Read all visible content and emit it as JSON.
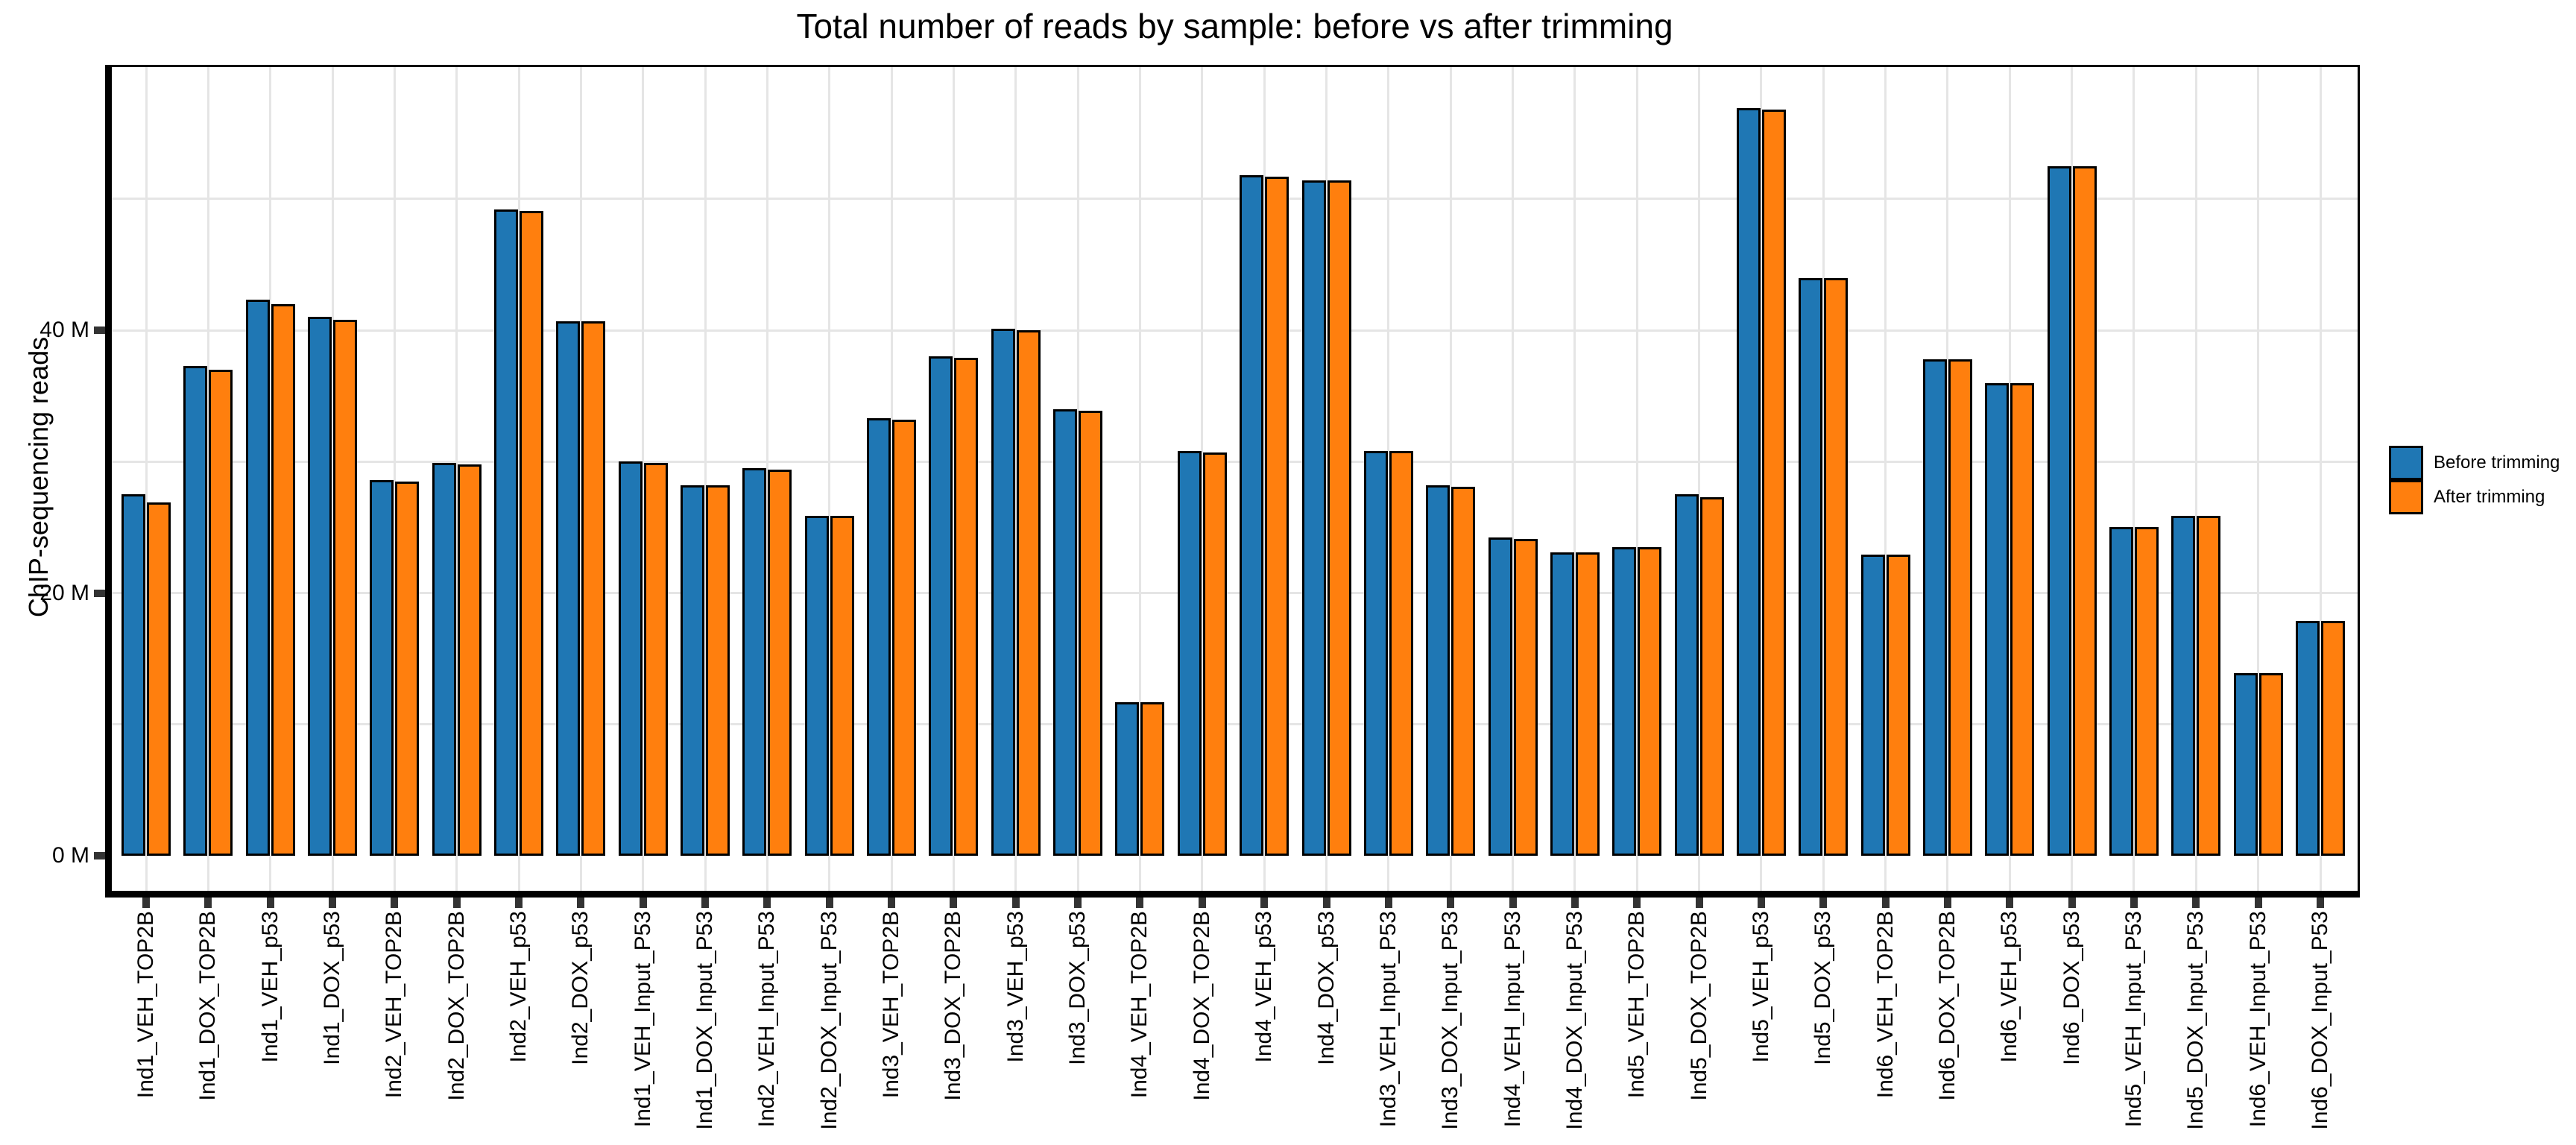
{
  "chart_data": {
    "type": "bar",
    "title": "Total number of reads by sample: before vs after trimming",
    "ylabel": "ChIP-sequencing reads",
    "xlabel": "",
    "units": "millions of reads",
    "legend_position": "right",
    "grid": true,
    "y_axis": {
      "tick_labels": [
        "0 M",
        "20 M",
        "40 M"
      ],
      "ticks_m": [
        0,
        20,
        40
      ],
      "gridlines_m": [
        10,
        20,
        30,
        40,
        50
      ],
      "ylim_m": [
        -2.85,
        59.85
      ]
    },
    "categories": [
      "Ind1_VEH_TOP2B",
      "Ind1_DOX_TOP2B",
      "Ind1_VEH_p53",
      "Ind1_DOX_p53",
      "Ind2_VEH_TOP2B",
      "Ind2_DOX_TOP2B",
      "Ind2_VEH_p53",
      "Ind2_DOX_p53",
      "Ind1_VEH_Input_P53",
      "Ind1_DOX_Input_P53",
      "Ind2_VEH_Input_P53",
      "Ind2_DOX_Input_P53",
      "Ind3_VEH_TOP2B",
      "Ind3_DOX_TOP2B",
      "Ind3_VEH_p53",
      "Ind3_DOX_p53",
      "Ind4_VEH_TOP2B",
      "Ind4_DOX_TOP2B",
      "Ind4_VEH_p53",
      "Ind4_DOX_p53",
      "Ind3_VEH_Input_P53",
      "Ind3_DOX_Input_P53",
      "Ind4_VEH_Input_P53",
      "Ind4_DOX_Input_P53",
      "Ind5_VEH_TOP2B",
      "Ind5_DOX_TOP2B",
      "Ind5_VEH_p53",
      "Ind5_DOX_p53",
      "Ind6_VEH_TOP2B",
      "Ind6_DOX_TOP2B",
      "Ind6_VEH_p53",
      "Ind6_DOX_p53",
      "Ind5_VEH_Input_P53",
      "Ind5_DOX_Input_P53",
      "Ind6_VEH_Input_P53",
      "Ind6_DOX_Input_P53"
    ],
    "series": [
      {
        "name": "Before trimming",
        "color": "#1f77b4",
        "values_m": [
          27.5,
          37.3,
          42.3,
          41.0,
          28.6,
          29.9,
          49.2,
          40.7,
          30.0,
          28.2,
          29.5,
          25.9,
          33.3,
          38.0,
          40.1,
          34.0,
          11.7,
          30.8,
          51.8,
          51.4,
          30.8,
          28.2,
          24.2,
          23.1,
          23.5,
          27.5,
          56.9,
          44.0,
          22.9,
          37.8,
          36.0,
          52.5,
          25.0,
          25.9,
          13.9,
          17.9
        ]
      },
      {
        "name": "After trimming",
        "color": "#ff7f0e",
        "values_m": [
          26.9,
          37.0,
          42.0,
          40.8,
          28.5,
          29.8,
          49.1,
          40.7,
          29.9,
          28.2,
          29.4,
          25.9,
          33.2,
          37.9,
          40.0,
          33.9,
          11.7,
          30.7,
          51.7,
          51.4,
          30.8,
          28.1,
          24.1,
          23.1,
          23.5,
          27.3,
          56.8,
          44.0,
          22.9,
          37.8,
          36.0,
          52.5,
          25.0,
          25.9,
          13.9,
          17.9
        ]
      }
    ]
  }
}
